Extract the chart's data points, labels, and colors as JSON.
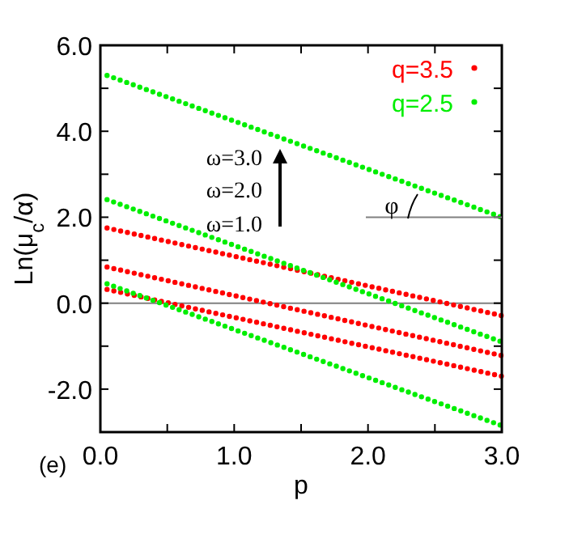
{
  "chart_data": {
    "type": "line",
    "xlabel": "p",
    "ylabel": "Ln(μ$_{c}$/α)",
    "xlim": [
      0,
      3
    ],
    "ylim": [
      -3,
      6
    ],
    "xticks": [
      {
        "value": 0,
        "label": "0.0"
      },
      {
        "value": 0.5,
        "label": null
      },
      {
        "value": 1,
        "label": "1.0"
      },
      {
        "value": 1.5,
        "label": null
      },
      {
        "value": 2,
        "label": "2.0"
      },
      {
        "value": 2.5,
        "label": null
      },
      {
        "value": 3,
        "label": "3.0"
      }
    ],
    "yticks": [
      {
        "value": -3,
        "label": null
      },
      {
        "value": -2,
        "label": "-2.0"
      },
      {
        "value": -1,
        "label": null
      },
      {
        "value": 0,
        "label": "0.0"
      },
      {
        "value": 1,
        "label": null
      },
      {
        "value": 2,
        "label": "2.0"
      },
      {
        "value": 3,
        "label": null
      },
      {
        "value": 4,
        "label": "4.0"
      },
      {
        "value": 5,
        "label": null
      },
      {
        "value": 6,
        "label": "6.0"
      }
    ],
    "x": [
      0.05,
      3.0
    ],
    "series": [
      {
        "name": "q=3.5",
        "color": "#ff0000",
        "values": [
          1.75,
          -0.29
        ]
      },
      {
        "color": "#ff0000",
        "values": [
          0.84,
          -1.22
        ]
      },
      {
        "color": "#ff0000",
        "values": [
          0.32,
          -1.7
        ]
      },
      {
        "name": "q=2.5",
        "color": "#00ee00",
        "values": [
          5.3,
          2.0
        ]
      },
      {
        "color": "#00ee00",
        "values": [
          2.41,
          -0.9
        ]
      },
      {
        "color": "#00ee00",
        "values": [
          0.45,
          -2.85
        ]
      }
    ],
    "line_style": "dotted",
    "legend": "top right",
    "grid": false,
    "ref_lines": [
      {
        "axis": "y",
        "value": 0,
        "color": "#808080"
      }
    ],
    "annotations": [
      {
        "text": "ω=3.0"
      },
      {
        "text": "ω=2.0"
      },
      {
        "text": "ω=1.0"
      },
      {
        "text": "φ"
      },
      {
        "text": "(e)"
      }
    ]
  }
}
